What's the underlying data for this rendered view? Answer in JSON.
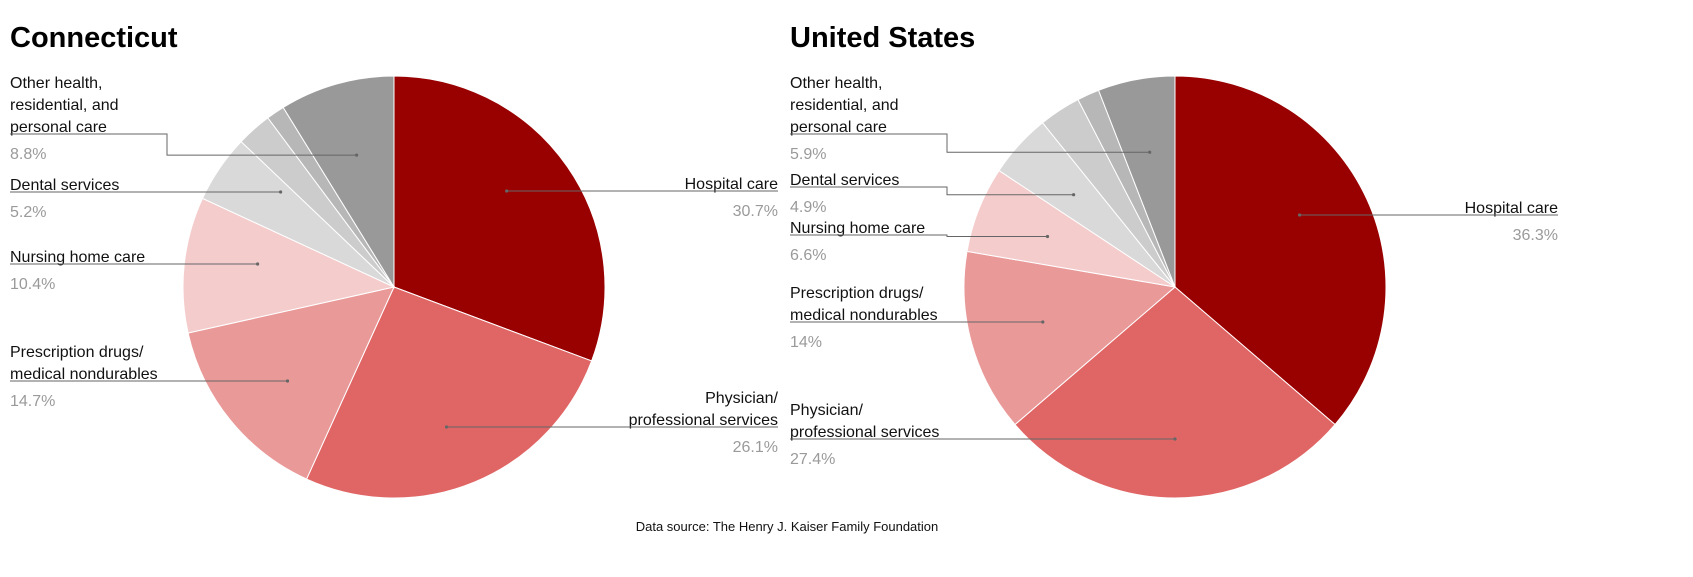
{
  "source_note": "Data source: The Henry J. Kaiser Family Foundation",
  "chart_data": [
    {
      "type": "pie",
      "title": "Connecticut",
      "series": [
        {
          "label_lines": [
            "Hospital care"
          ],
          "pct_text": "30.7%",
          "value": 30.7,
          "color": "#990000"
        },
        {
          "label_lines": [
            "Physician/",
            "professional services"
          ],
          "pct_text": "26.1%",
          "value": 26.1,
          "color": "#e06666"
        },
        {
          "label_lines": [
            "Prescription drugs/",
            "medical nondurables"
          ],
          "pct_text": "14.7%",
          "value": 14.7,
          "color": "#ea9999"
        },
        {
          "label_lines": [
            "Nursing home care"
          ],
          "pct_text": "10.4%",
          "value": 10.4,
          "color": "#f4cccc"
        },
        {
          "label_lines": [
            "Dental services"
          ],
          "pct_text": "5.2%",
          "value": 5.2,
          "color": "#d9d9d9"
        },
        {
          "label_lines": [],
          "pct_text": "",
          "value": 2.7,
          "color": "#cccccc"
        },
        {
          "label_lines": [],
          "pct_text": "",
          "value": 1.4,
          "color": "#b7b7b7"
        },
        {
          "label_lines": [
            "Other health,",
            "residential, and",
            "personal care"
          ],
          "pct_text": "8.8%",
          "value": 8.8,
          "color": "#999999"
        }
      ]
    },
    {
      "type": "pie",
      "title": "United States",
      "series": [
        {
          "label_lines": [
            "Hospital care"
          ],
          "pct_text": "36.3%",
          "value": 36.3,
          "color": "#990000"
        },
        {
          "label_lines": [
            "Physician/",
            "professional services"
          ],
          "pct_text": "27.4%",
          "value": 27.4,
          "color": "#e06666"
        },
        {
          "label_lines": [
            "Prescription drugs/",
            "medical nondurables"
          ],
          "pct_text": "14%",
          "value": 14.0,
          "color": "#ea9999"
        },
        {
          "label_lines": [
            "Nursing home care"
          ],
          "pct_text": "6.6%",
          "value": 6.6,
          "color": "#f4cccc"
        },
        {
          "label_lines": [
            "Dental services"
          ],
          "pct_text": "4.9%",
          "value": 4.9,
          "color": "#d9d9d9"
        },
        {
          "label_lines": [],
          "pct_text": "",
          "value": 3.2,
          "color": "#cccccc"
        },
        {
          "label_lines": [],
          "pct_text": "",
          "value": 1.7,
          "color": "#b7b7b7"
        },
        {
          "label_lines": [
            "Other health,",
            "residential, and",
            "personal care"
          ],
          "pct_text": "5.9%",
          "value": 5.9,
          "color": "#999999"
        }
      ]
    }
  ]
}
